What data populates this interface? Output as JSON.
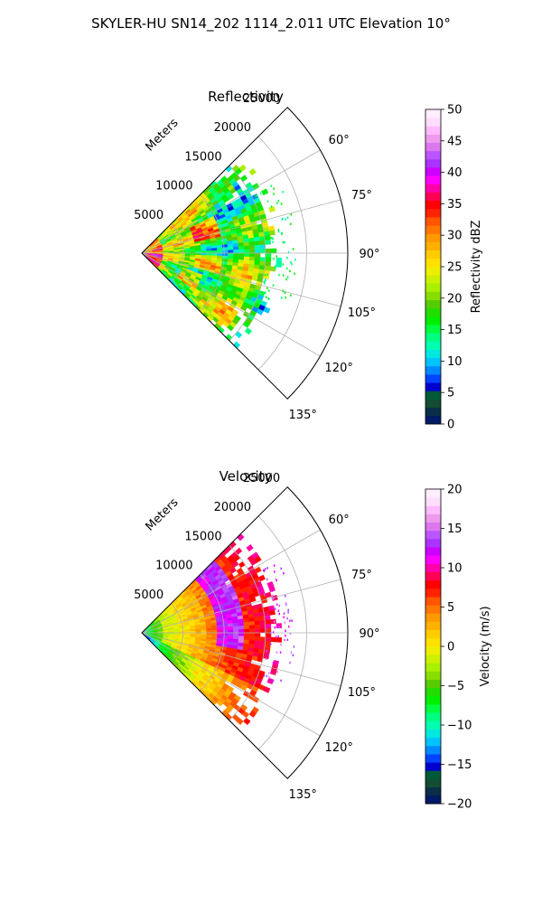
{
  "figure": {
    "title": "SKYLER-HU  SN14_202  1114_2.011 UTC Elevation 10°"
  },
  "chart_data": [
    {
      "type": "heatmap",
      "subtype": "polar-sector-ppi",
      "title": "Reflectivity",
      "radial_axis_label": "Meters",
      "radial_ticks": [
        5000,
        10000,
        15000,
        20000,
        25000
      ],
      "radial_tick_labels": [
        "5000",
        "10000",
        "15000",
        "20000",
        "25000"
      ],
      "rlim": [
        0,
        25000
      ],
      "azimuth_range_deg": [
        45,
        135
      ],
      "azimuth_ticks": [
        60,
        75,
        90,
        105,
        120,
        135
      ],
      "azimuth_tick_labels": [
        "60°",
        "75°",
        "90°",
        "105°",
        "120°",
        "135°"
      ],
      "grid": true,
      "data_extent": {
        "azimuth_deg": [
          45,
          135
        ],
        "range_m": [
          0,
          17000
        ]
      },
      "colorbar": {
        "label": "Reflectivity dBZ",
        "vmin": 0,
        "vmax": 50,
        "ticks": [
          0,
          5,
          10,
          15,
          20,
          25,
          30,
          35,
          40,
          45,
          50
        ],
        "tick_labels": [
          "0",
          "5",
          "10",
          "15",
          "20",
          "25",
          "30",
          "35",
          "40",
          "45",
          "50"
        ],
        "colors": [
          "#001a66",
          "#0a2e4a",
          "#134d33",
          "#005a3a",
          "#0000cc",
          "#0044ff",
          "#0088ff",
          "#00c4ff",
          "#00e8e0",
          "#00ffb0",
          "#00ff80",
          "#00ff40",
          "#00ee00",
          "#22dd00",
          "#55cc00",
          "#88dd00",
          "#aaee00",
          "#ccf000",
          "#eeee00",
          "#ffe000",
          "#ffcc00",
          "#ffb000",
          "#ff9900",
          "#ff7700",
          "#ff5500",
          "#ff2200",
          "#ff0000",
          "#ff0055",
          "#ff00aa",
          "#ff00ff",
          "#cc00ff",
          "#aa33ff",
          "#bb55ff",
          "#dd77ee",
          "#ee99ee",
          "#ffbbff",
          "#ffddff",
          "#ffeeff"
        ]
      }
    },
    {
      "type": "heatmap",
      "subtype": "polar-sector-ppi",
      "title": "Velocity",
      "radial_axis_label": "Meters",
      "radial_ticks": [
        5000,
        10000,
        15000,
        20000,
        25000
      ],
      "radial_tick_labels": [
        "5000",
        "10000",
        "15000",
        "20000",
        "25000"
      ],
      "rlim": [
        0,
        25000
      ],
      "azimuth_range_deg": [
        45,
        135
      ],
      "azimuth_ticks": [
        60,
        75,
        90,
        105,
        120,
        135
      ],
      "azimuth_tick_labels": [
        "60°",
        "75°",
        "90°",
        "105°",
        "120°",
        "135°"
      ],
      "grid": true,
      "data_extent": {
        "azimuth_deg": [
          45,
          135
        ],
        "range_m": [
          0,
          17000
        ]
      },
      "colorbar": {
        "label": "Velocity (m/s)",
        "vmin": -20,
        "vmax": 20,
        "ticks": [
          -20,
          -15,
          -10,
          -5,
          0,
          5,
          10,
          15,
          20
        ],
        "tick_labels": [
          "−20",
          "−15",
          "−10",
          "−5",
          "0",
          "5",
          "10",
          "15",
          "20"
        ],
        "colors": [
          "#001a66",
          "#0a2e4a",
          "#134d33",
          "#005a3a",
          "#0000cc",
          "#0044ff",
          "#0088ff",
          "#00c4ff",
          "#00e8e0",
          "#00ffb0",
          "#00ff80",
          "#00ff40",
          "#00ee00",
          "#22dd00",
          "#55cc00",
          "#88dd00",
          "#aaee00",
          "#ccf000",
          "#eeee00",
          "#ffe000",
          "#ffcc00",
          "#ffb000",
          "#ff9900",
          "#ff7700",
          "#ff5500",
          "#ff2200",
          "#ff0000",
          "#ff0055",
          "#ff00aa",
          "#ff00ff",
          "#cc00ff",
          "#aa33ff",
          "#bb55ff",
          "#dd77ee",
          "#ee99ee",
          "#ffbbff",
          "#ffddff",
          "#ffeeff"
        ]
      }
    }
  ]
}
